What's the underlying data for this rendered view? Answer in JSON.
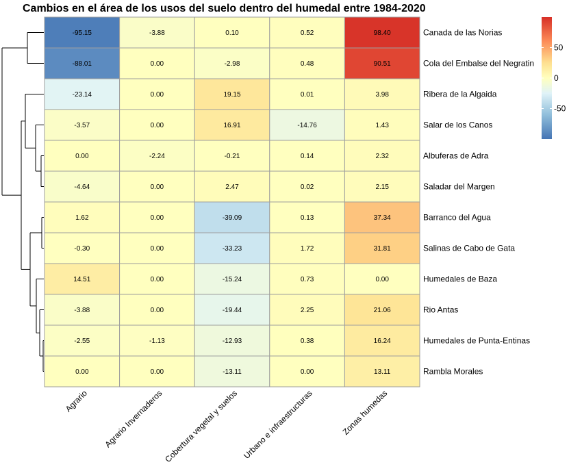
{
  "chart_data": {
    "type": "heatmap",
    "title": "Cambios en el área de los usos del suelo dentro del humedal entre 1984-2020",
    "columns": [
      "Agrario",
      "Agrario Invernaderos",
      "Cobertura vegetal y suelos",
      "Urbano e infraestructuras",
      "Zonas humedas"
    ],
    "rows": [
      "Canada de las Norias",
      "Cola del Embalse del Negratin",
      "Ribera de la Algaida",
      "Salar de los Canos",
      "Albuferas de Adra",
      "Saladar del Margen",
      "Barranco del Agua",
      "Salinas de Cabo de Gata",
      "Humedales de Baza",
      "Rio Antas",
      "Humedales de Punta-Entinas",
      "Rambla Morales"
    ],
    "values": [
      [
        -95.15,
        -3.88,
        0.1,
        0.52,
        98.4
      ],
      [
        -88.01,
        0.0,
        -2.98,
        0.48,
        90.51
      ],
      [
        -23.14,
        0.0,
        19.15,
        0.01,
        3.98
      ],
      [
        -3.57,
        0.0,
        16.91,
        -14.76,
        1.43
      ],
      [
        0.0,
        -2.24,
        -0.21,
        0.14,
        2.32
      ],
      [
        -4.64,
        0.0,
        2.47,
        0.02,
        2.15
      ],
      [
        1.62,
        0.0,
        -39.09,
        0.13,
        37.34
      ],
      [
        -0.3,
        0.0,
        -33.23,
        1.72,
        31.81
      ],
      [
        14.51,
        0.0,
        -15.24,
        0.73,
        0.0
      ],
      [
        -3.88,
        0.0,
        -19.44,
        2.25,
        21.06
      ],
      [
        -2.55,
        -1.13,
        -12.93,
        0.38,
        16.24
      ],
      [
        0.0,
        0.0,
        -13.11,
        0.0,
        13.11
      ]
    ],
    "value_labels": [
      [
        "-95.15",
        "-3.88",
        "0.10",
        "0.52",
        "98.40"
      ],
      [
        "-88.01",
        "0.00",
        "-2.98",
        "0.48",
        "90.51"
      ],
      [
        "-23.14",
        "0.00",
        "19.15",
        "0.01",
        "3.98"
      ],
      [
        "-3.57",
        "0.00",
        "16.91",
        "-14.76",
        "1.43"
      ],
      [
        "0.00",
        "-2.24",
        "-0.21",
        "0.14",
        "2.32"
      ],
      [
        "-4.64",
        "0.00",
        "2.47",
        "0.02",
        "2.15"
      ],
      [
        "1.62",
        "0.00",
        "-39.09",
        "0.13",
        "37.34"
      ],
      [
        "-0.30",
        "0.00",
        "-33.23",
        "1.72",
        "31.81"
      ],
      [
        "14.51",
        "0.00",
        "-15.24",
        "0.73",
        "0.00"
      ],
      [
        "-3.88",
        "0.00",
        "-19.44",
        "2.25",
        "21.06"
      ],
      [
        "-2.55",
        "-1.13",
        "-12.93",
        "0.38",
        "16.24"
      ],
      [
        "0.00",
        "0.00",
        "-13.11",
        "0.00",
        "13.11"
      ]
    ],
    "color_scale": {
      "min": -100,
      "max": 100,
      "stops": [
        {
          "value": -100,
          "color": "#4575b4"
        },
        {
          "value": -60,
          "color": "#91bfdb"
        },
        {
          "value": -25,
          "color": "#e0f3f8"
        },
        {
          "value": 0,
          "color": "#ffffbf"
        },
        {
          "value": 25,
          "color": "#fee090"
        },
        {
          "value": 60,
          "color": "#fc8d59"
        },
        {
          "value": 100,
          "color": "#d73027"
        }
      ],
      "ticks": [
        50,
        0,
        -50
      ],
      "tick_labels": [
        "50",
        "0",
        "-50"
      ]
    },
    "row_dendrogram": true,
    "legend_position": "top-right",
    "grid_color": "#9e9e9e"
  }
}
